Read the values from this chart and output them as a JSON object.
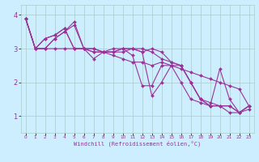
{
  "title": "",
  "xlabel": "Windchill (Refroidissement éolien,°C)",
  "ylabel": "",
  "background_color": "#cceeff",
  "grid_color": "#aacccc",
  "line_color": "#993399",
  "xlim": [
    -0.5,
    23.5
  ],
  "ylim": [
    0.5,
    4.3
  ],
  "yticks": [
    1,
    2,
    3,
    4
  ],
  "ytick_labels": [
    "1",
    "2",
    "3",
    "4"
  ],
  "xticks": [
    0,
    1,
    2,
    3,
    4,
    5,
    6,
    7,
    8,
    9,
    10,
    11,
    12,
    13,
    14,
    15,
    16,
    17,
    18,
    19,
    20,
    21,
    22,
    23
  ],
  "series": [
    [
      3.9,
      3.0,
      3.0,
      3.0,
      3.0,
      3.0,
      3.0,
      2.9,
      2.9,
      2.8,
      2.7,
      2.6,
      2.6,
      2.5,
      2.6,
      2.5,
      2.4,
      2.3,
      2.2,
      2.1,
      2.0,
      1.9,
      1.8,
      1.3
    ],
    [
      3.9,
      3.0,
      3.0,
      3.3,
      3.5,
      3.7,
      3.0,
      3.0,
      2.9,
      2.9,
      2.9,
      3.0,
      2.9,
      1.6,
      2.0,
      2.5,
      2.5,
      2.0,
      1.5,
      1.3,
      1.3,
      1.3,
      1.1,
      1.3
    ],
    [
      3.9,
      3.0,
      3.0,
      3.3,
      3.5,
      3.8,
      3.0,
      2.7,
      2.9,
      2.9,
      3.0,
      2.8,
      1.9,
      1.9,
      2.5,
      2.5,
      2.0,
      1.5,
      1.4,
      1.3,
      2.4,
      1.5,
      1.1,
      1.3
    ],
    [
      3.9,
      3.0,
      3.3,
      3.4,
      3.6,
      3.0,
      3.0,
      2.9,
      2.9,
      2.9,
      3.0,
      3.0,
      3.0,
      2.9,
      2.7,
      2.6,
      2.5,
      2.0,
      1.5,
      1.4,
      1.3,
      1.1,
      1.1,
      1.3
    ],
    [
      3.9,
      3.0,
      3.3,
      3.4,
      3.6,
      3.0,
      3.0,
      3.0,
      2.9,
      3.0,
      3.0,
      3.0,
      2.9,
      3.0,
      2.9,
      2.6,
      2.5,
      2.0,
      1.5,
      1.3,
      1.3,
      1.3,
      1.1,
      1.2
    ]
  ],
  "marker": "D",
  "markersize": 2.0,
  "linewidth": 0.8
}
